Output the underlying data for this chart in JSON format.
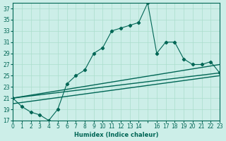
{
  "xlabel": "Humidex (Indice chaleur)",
  "bg_color": "#cceee8",
  "grid_color": "#aaddcc",
  "line_color": "#006655",
  "xlim": [
    0,
    23
  ],
  "ylim": [
    17,
    38
  ],
  "yticks": [
    17,
    19,
    21,
    23,
    25,
    27,
    29,
    31,
    33,
    35,
    37
  ],
  "xticks": [
    0,
    1,
    2,
    3,
    4,
    5,
    6,
    7,
    8,
    9,
    10,
    11,
    12,
    13,
    14,
    15,
    16,
    17,
    18,
    19,
    20,
    21,
    22,
    23
  ],
  "xtick_labels": [
    "0",
    "1",
    "2",
    "3",
    "4",
    "5",
    "6",
    "7",
    "8",
    "9",
    "10",
    "11",
    "12",
    "13",
    "14",
    "",
    "16",
    "17",
    "18",
    "19",
    "20",
    "21",
    "22",
    "23"
  ],
  "main_x": [
    0,
    1,
    2,
    3,
    4,
    5,
    6,
    7,
    8,
    9,
    10,
    11,
    12,
    13,
    14,
    15,
    16,
    17,
    18,
    19,
    20,
    21,
    22,
    23
  ],
  "main_y": [
    21,
    19.5,
    18.5,
    18,
    17,
    19,
    23.5,
    25,
    26,
    29,
    30,
    33,
    33.5,
    34,
    34.5,
    38,
    29,
    31,
    31,
    28,
    27,
    27,
    27.5,
    25.5
  ],
  "line1_x": [
    0,
    23
  ],
  "line1_y": [
    21,
    27
  ],
  "line2_x": [
    0,
    23
  ],
  "line2_y": [
    21,
    25.5
  ],
  "line3_x": [
    0,
    23
  ],
  "line3_y": [
    20,
    25
  ]
}
